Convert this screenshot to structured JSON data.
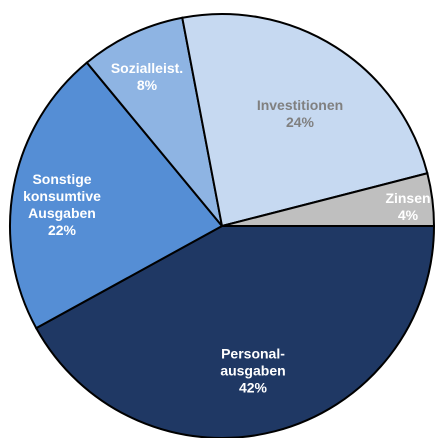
{
  "chart_data": {
    "type": "pie",
    "categories": [
      [
        "Personal-",
        "ausgaben"
      ],
      [
        "Sonstige",
        "konsumtive",
        "Ausgaben"
      ],
      [
        "Sozialleist."
      ],
      [
        "Investitionen"
      ],
      [
        "Zinsen"
      ]
    ],
    "values": [
      42,
      22,
      8,
      24,
      4
    ],
    "value_labels": [
      "42%",
      "22%",
      "8%",
      "24%",
      "4%"
    ],
    "colors": [
      "#1f3864",
      "#558ed5",
      "#8eb4e3",
      "#c6d9f1",
      "#bfbfbf"
    ],
    "label_colors": [
      "#ffffff",
      "#ffffff",
      "#ffffff",
      "#808080",
      "#ffffff"
    ]
  }
}
